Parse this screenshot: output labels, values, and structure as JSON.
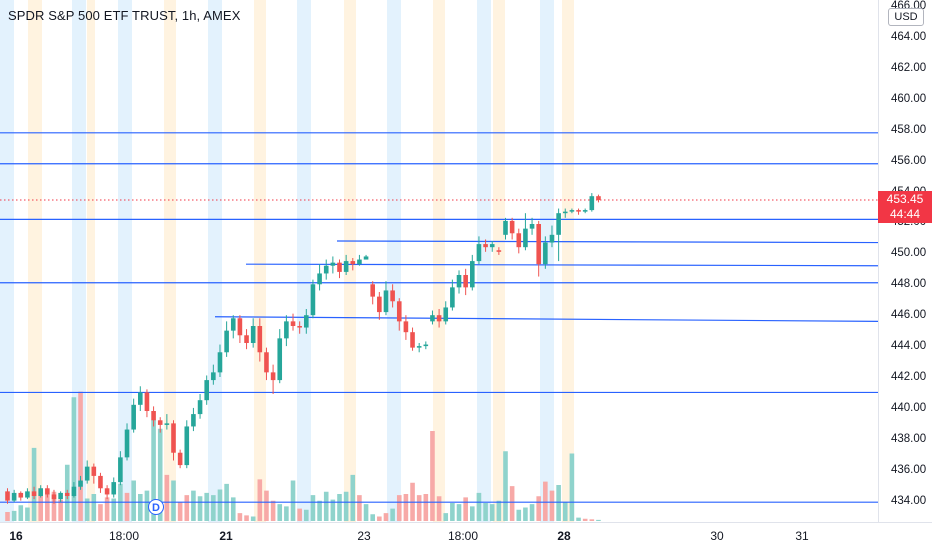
{
  "header": {
    "symbol_title": "SPDR S&P 500 ETF TRUST, 1h, AMEX",
    "currency": "USD",
    "last_price": "453.45",
    "countdown": "44:44",
    "dividend_marker": "D"
  },
  "colors": {
    "up": "#26a69a",
    "down": "#ef5350",
    "level_line": "#2962ff",
    "last_price_line": "#f23645",
    "premarket_band": "#fff3e0",
    "postmarket_band": "#e3f2fd"
  },
  "price_scale": {
    "ticks": [
      "466.00",
      "464.00",
      "462.00",
      "460.00",
      "458.00",
      "456.00",
      "454.00",
      "452.00",
      "450.00",
      "448.00",
      "446.00",
      "444.00",
      "442.00",
      "440.00",
      "438.00",
      "436.00",
      "434.00"
    ]
  },
  "time_scale": {
    "ticks": [
      {
        "label": "16",
        "bold": true
      },
      {
        "label": "18:00",
        "bold": false
      },
      {
        "label": "21",
        "bold": true
      },
      {
        "label": "23",
        "bold": false
      },
      {
        "label": "18:00",
        "bold": false
      },
      {
        "label": "28",
        "bold": true
      },
      {
        "label": "30",
        "bold": false
      },
      {
        "label": "31",
        "bold": false
      }
    ]
  },
  "chart_data": {
    "type": "candlestick",
    "title": "SPDR S&P 500 ETF TRUST, 1h, AMEX",
    "ylim": [
      433.2,
      466.2
    ],
    "last_price": 453.45,
    "horizontal_levels": [
      457.8,
      455.8,
      452.2,
      448.1,
      441.0,
      433.9
    ],
    "ray_levels": [
      {
        "start": 450.8,
        "end": 450.7
      },
      {
        "start": 449.3,
        "end": 449.2
      },
      {
        "start": 445.9,
        "end": 445.6
      }
    ],
    "candles": [
      [
        0,
        434.6,
        434.0,
        434.8,
        433.8
      ],
      [
        1,
        434.0,
        434.5,
        434.7,
        433.9
      ],
      [
        2,
        434.5,
        434.2,
        434.6,
        434.0
      ],
      [
        3,
        434.2,
        434.6,
        434.8,
        434.1
      ],
      [
        4,
        434.6,
        434.3,
        434.9,
        434.1
      ],
      [
        5,
        434.3,
        434.8,
        435.0,
        434.2
      ],
      [
        6,
        434.8,
        434.4,
        435.0,
        434.2
      ],
      [
        7,
        434.4,
        434.1,
        434.7,
        433.8
      ],
      [
        8,
        434.1,
        434.5,
        434.6,
        433.9
      ],
      [
        9,
        434.5,
        434.3,
        434.7,
        434.1
      ],
      [
        10,
        434.3,
        434.9,
        435.2,
        434.2
      ],
      [
        11,
        434.9,
        435.3,
        435.6,
        434.7
      ],
      [
        12,
        435.3,
        436.2,
        436.6,
        435.1
      ],
      [
        13,
        436.2,
        435.6,
        436.4,
        435.1
      ],
      [
        14,
        435.6,
        434.8,
        435.8,
        434.5
      ],
      [
        15,
        434.8,
        434.4,
        435.0,
        434.1
      ],
      [
        16,
        434.4,
        435.2,
        435.5,
        434.2
      ],
      [
        17,
        435.2,
        436.8,
        437.2,
        435.0
      ],
      [
        18,
        436.8,
        438.6,
        439.0,
        436.6
      ],
      [
        19,
        438.6,
        440.2,
        440.6,
        438.4
      ],
      [
        20,
        440.2,
        441.0,
        441.4,
        439.8
      ],
      [
        21,
        441.0,
        439.8,
        441.2,
        439.4
      ],
      [
        22,
        439.8,
        439.2,
        440.1,
        438.8
      ],
      [
        23,
        439.2,
        438.9,
        439.4,
        438.4
      ],
      [
        24,
        438.9,
        439.0,
        439.6,
        438.6
      ],
      [
        25,
        439.0,
        437.1,
        439.2,
        436.6
      ],
      [
        26,
        437.1,
        436.3,
        437.3,
        436.1
      ],
      [
        27,
        436.3,
        438.8,
        439.2,
        436.1
      ],
      [
        28,
        438.8,
        439.6,
        440.0,
        438.5
      ],
      [
        29,
        439.6,
        440.5,
        440.9,
        439.3
      ],
      [
        30,
        440.5,
        441.8,
        442.1,
        440.2
      ],
      [
        31,
        441.8,
        442.3,
        442.8,
        441.5
      ],
      [
        32,
        442.3,
        443.6,
        444.1,
        442.0
      ],
      [
        33,
        443.6,
        445.0,
        445.6,
        443.3
      ],
      [
        34,
        445.0,
        445.8,
        446.0,
        444.5
      ],
      [
        35,
        445.8,
        444.7,
        446.0,
        444.2
      ],
      [
        36,
        444.7,
        444.2,
        445.1,
        443.8
      ],
      [
        37,
        444.2,
        445.3,
        445.8,
        443.9
      ],
      [
        38,
        445.3,
        443.6,
        445.8,
        443.0
      ],
      [
        39,
        443.6,
        442.3,
        443.9,
        441.8
      ],
      [
        40,
        442.3,
        441.8,
        442.8,
        440.9
      ],
      [
        41,
        441.8,
        444.5,
        445.1,
        441.6
      ],
      [
        42,
        444.5,
        445.6,
        446.0,
        444.0
      ],
      [
        43,
        445.6,
        445.3,
        446.1,
        445.0
      ],
      [
        44,
        445.3,
        445.2,
        445.6,
        444.8
      ],
      [
        45,
        445.2,
        446.0,
        446.4,
        444.8
      ],
      [
        46,
        446.0,
        448.0,
        448.3,
        445.8
      ],
      [
        47,
        448.0,
        448.7,
        449.3,
        447.6
      ],
      [
        48,
        448.7,
        449.2,
        449.6,
        448.3
      ],
      [
        49,
        449.2,
        449.4,
        449.8,
        448.7
      ],
      [
        50,
        449.4,
        448.8,
        449.6,
        448.4
      ],
      [
        51,
        448.8,
        449.5,
        449.9,
        448.6
      ],
      [
        52,
        449.5,
        449.3,
        449.7,
        448.9
      ],
      [
        53,
        449.3,
        449.6,
        449.9,
        449.2
      ],
      [
        54,
        449.6,
        449.8,
        449.9,
        449.6
      ],
      [
        55,
        448.0,
        447.2,
        448.2,
        446.7
      ],
      [
        56,
        447.2,
        446.2,
        447.5,
        445.7
      ],
      [
        57,
        446.2,
        447.6,
        448.2,
        446.0
      ],
      [
        58,
        447.6,
        446.9,
        448.0,
        446.5
      ],
      [
        59,
        446.9,
        445.6,
        447.1,
        445.0
      ],
      [
        60,
        445.6,
        444.9,
        446.0,
        444.4
      ],
      [
        61,
        444.9,
        443.9,
        445.2,
        443.7
      ],
      [
        62,
        443.9,
        444.0,
        444.2,
        443.6
      ],
      [
        63,
        444.0,
        444.1,
        444.3,
        443.8
      ],
      [
        64,
        445.6,
        446.0,
        446.3,
        445.4
      ],
      [
        65,
        446.0,
        445.6,
        446.4,
        445.2
      ],
      [
        66,
        445.6,
        446.5,
        446.9,
        445.4
      ],
      [
        67,
        446.5,
        447.8,
        448.3,
        446.3
      ],
      [
        68,
        447.8,
        448.6,
        448.9,
        447.4
      ],
      [
        69,
        448.6,
        447.8,
        449.0,
        447.3
      ],
      [
        70,
        447.8,
        449.5,
        449.9,
        447.6
      ],
      [
        71,
        449.5,
        450.6,
        451.1,
        449.3
      ],
      [
        72,
        450.6,
        450.4,
        450.9,
        450.1
      ],
      [
        73,
        450.4,
        450.6,
        450.8,
        450.1
      ],
      [
        74,
        450.2,
        450.1,
        450.4,
        449.9
      ],
      [
        75,
        451.2,
        452.1,
        452.3,
        450.9
      ],
      [
        76,
        452.1,
        451.3,
        452.3,
        450.9
      ],
      [
        77,
        451.3,
        450.4,
        451.6,
        450.0
      ],
      [
        78,
        450.4,
        451.6,
        452.6,
        450.2
      ],
      [
        79,
        451.6,
        451.9,
        452.3,
        451.2
      ],
      [
        80,
        451.9,
        449.3,
        452.1,
        448.5
      ],
      [
        81,
        449.3,
        450.7,
        451.1,
        449.0
      ],
      [
        82,
        450.7,
        451.2,
        451.8,
        450.4
      ],
      [
        83,
        451.2,
        452.6,
        452.9,
        449.5
      ],
      [
        84,
        452.6,
        452.7,
        452.9,
        452.3
      ],
      [
        85,
        452.7,
        452.8,
        452.9,
        452.6
      ],
      [
        86,
        452.8,
        452.7,
        452.9,
        452.5
      ],
      [
        87,
        452.7,
        452.8,
        452.9,
        452.6
      ],
      [
        88,
        452.8,
        453.7,
        453.9,
        452.7
      ],
      [
        89,
        453.7,
        453.45,
        453.8,
        453.3
      ]
    ],
    "volume_max": 12000,
    "volume": [
      [
        0,
        800,
        0
      ],
      [
        1,
        900,
        1
      ],
      [
        2,
        1400,
        1
      ],
      [
        3,
        1200,
        1
      ],
      [
        4,
        6500,
        1
      ],
      [
        5,
        2900,
        0
      ],
      [
        6,
        2400,
        0
      ],
      [
        7,
        2600,
        0
      ],
      [
        8,
        1900,
        0
      ],
      [
        9,
        5000,
        1
      ],
      [
        10,
        11000,
        1
      ],
      [
        11,
        11500,
        0
      ],
      [
        12,
        2000,
        1
      ],
      [
        13,
        2400,
        1
      ],
      [
        14,
        1500,
        0
      ],
      [
        15,
        2100,
        0
      ],
      [
        16,
        2000,
        1
      ],
      [
        17,
        3300,
        1
      ],
      [
        18,
        2500,
        0
      ],
      [
        19,
        3600,
        1
      ],
      [
        20,
        2400,
        1
      ],
      [
        21,
        2700,
        1
      ],
      [
        22,
        9000,
        1
      ],
      [
        23,
        8200,
        1
      ],
      [
        24,
        4100,
        0
      ],
      [
        25,
        3600,
        1
      ],
      [
        26,
        1700,
        0
      ],
      [
        27,
        2300,
        0
      ],
      [
        28,
        2700,
        1
      ],
      [
        29,
        2200,
        1
      ],
      [
        30,
        2500,
        1
      ],
      [
        31,
        2300,
        1
      ],
      [
        32,
        2800,
        1
      ],
      [
        33,
        3300,
        1
      ],
      [
        34,
        2100,
        1
      ],
      [
        35,
        700,
        0
      ],
      [
        36,
        500,
        0
      ],
      [
        37,
        400,
        1
      ],
      [
        38,
        3700,
        0
      ],
      [
        39,
        2700,
        0
      ],
      [
        40,
        1800,
        0
      ],
      [
        41,
        1500,
        1
      ],
      [
        42,
        1300,
        1
      ],
      [
        43,
        3600,
        1
      ],
      [
        44,
        1100,
        0
      ],
      [
        45,
        1000,
        1
      ],
      [
        46,
        2300,
        1
      ],
      [
        47,
        1800,
        1
      ],
      [
        48,
        2600,
        1
      ],
      [
        49,
        1900,
        1
      ],
      [
        50,
        2400,
        1
      ],
      [
        51,
        2600,
        1
      ],
      [
        52,
        4100,
        1
      ],
      [
        53,
        2300,
        0
      ],
      [
        54,
        1500,
        1
      ],
      [
        55,
        600,
        1
      ],
      [
        56,
        400,
        0
      ],
      [
        57,
        700,
        0
      ],
      [
        58,
        1100,
        1
      ],
      [
        59,
        2300,
        0
      ],
      [
        60,
        2400,
        0
      ],
      [
        61,
        3400,
        0
      ],
      [
        62,
        2300,
        0
      ],
      [
        63,
        2400,
        0
      ],
      [
        64,
        8000,
        0
      ],
      [
        65,
        2200,
        0
      ],
      [
        66,
        700,
        1
      ],
      [
        67,
        1600,
        1
      ],
      [
        68,
        1500,
        1
      ],
      [
        69,
        2100,
        0
      ],
      [
        70,
        1300,
        1
      ],
      [
        71,
        2500,
        1
      ],
      [
        72,
        1600,
        1
      ],
      [
        73,
        1500,
        1
      ],
      [
        74,
        1800,
        1
      ],
      [
        75,
        6200,
        1
      ],
      [
        76,
        3100,
        0
      ],
      [
        77,
        1000,
        1
      ],
      [
        78,
        1200,
        1
      ],
      [
        79,
        1500,
        1
      ],
      [
        80,
        2200,
        0
      ],
      [
        81,
        3500,
        0
      ],
      [
        82,
        2700,
        0
      ],
      [
        83,
        3200,
        1
      ],
      [
        84,
        1700,
        1
      ],
      [
        85,
        6000,
        1
      ],
      [
        86,
        300,
        1
      ],
      [
        87,
        200,
        0
      ],
      [
        88,
        150,
        0
      ],
      [
        89,
        100,
        1
      ]
    ]
  }
}
